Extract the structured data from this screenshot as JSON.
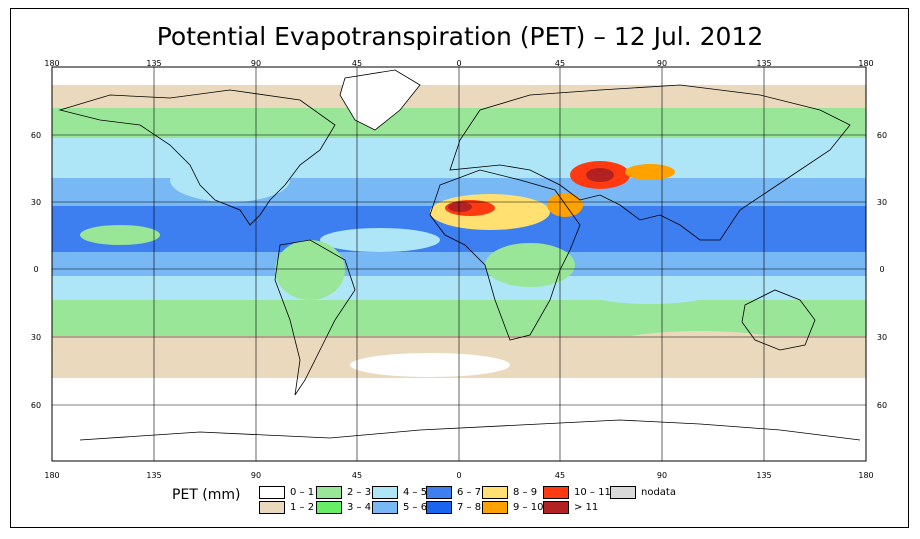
{
  "title": "Potential Evapotranspiration (PET) – 12 Jul. 2012",
  "axes": {
    "top_lon_labels": [
      "180",
      "135",
      "90",
      "45",
      "0",
      "45",
      "90",
      "135",
      "180"
    ],
    "bottom_lon_labels": [
      "180",
      "135",
      "90",
      "45",
      "0",
      "45",
      "90",
      "135",
      "180"
    ],
    "left_lat_labels": [
      "60",
      "30",
      "0",
      "30",
      "60"
    ],
    "right_lat_labels": [
      "60",
      "30",
      "0",
      "30",
      "60"
    ]
  },
  "legend": {
    "title": "PET (mm)",
    "items": [
      {
        "label": "0 – 1",
        "color": "#ffffff"
      },
      {
        "label": "1 – 2",
        "color": "#ead9bc"
      },
      {
        "label": "2 – 3",
        "color": "#99e699"
      },
      {
        "label": "3 – 4",
        "color": "#66ee66"
      },
      {
        "label": "4 – 5",
        "color": "#aee6f8"
      },
      {
        "label": "5 – 6",
        "color": "#78b8f5"
      },
      {
        "label": "6 – 7",
        "color": "#3d7ef0"
      },
      {
        "label": "7 – 8",
        "color": "#1b64ee"
      },
      {
        "label": "8 – 9",
        "color": "#ffe070"
      },
      {
        "label": "9 – 10",
        "color": "#ffa200"
      },
      {
        "label": "10 – 11",
        "color": "#ff3a10"
      },
      {
        "label": "> 11",
        "color": "#b22222"
      },
      {
        "label": "nodata",
        "color": "#d9d9d9"
      }
    ]
  }
}
